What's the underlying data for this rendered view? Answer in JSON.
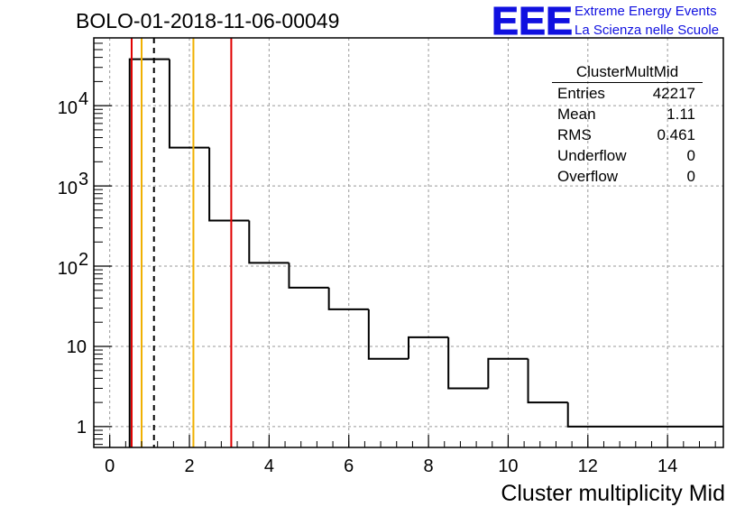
{
  "title": "BOLO-01-2018-11-06-00049",
  "logo": {
    "mark": "EEE",
    "line1": "Extreme Energy Events",
    "line2": "La Scienza nelle Scuole",
    "color": "#1010e0"
  },
  "stats_box": {
    "name": "ClusterMultMid",
    "rows": [
      {
        "label": "Entries",
        "value": "42217"
      },
      {
        "label": "Mean",
        "value": "1.11"
      },
      {
        "label": "RMS",
        "value": "0.461"
      },
      {
        "label": "Underflow",
        "value": "0"
      },
      {
        "label": "Overflow",
        "value": "0"
      }
    ]
  },
  "chart_data": {
    "type": "histogram",
    "xlabel": "Cluster multiplicity Mid",
    "ylabel": "",
    "xlim": [
      -0.4,
      15.4
    ],
    "ylim": [
      0.55,
      70000
    ],
    "y_scale": "log",
    "grid": true,
    "x_ticks": [
      0,
      2,
      4,
      6,
      8,
      10,
      12,
      14
    ],
    "y_ticks": [
      {
        "value": 1,
        "label": "1"
      },
      {
        "value": 10,
        "label": "10"
      },
      {
        "value": 100,
        "base": "10",
        "exp": "2"
      },
      {
        "value": 1000,
        "base": "10",
        "exp": "3"
      },
      {
        "value": 10000,
        "base": "10",
        "exp": "4"
      }
    ],
    "bins": [
      {
        "x0": 0.5,
        "x1": 1.5,
        "count": 38000
      },
      {
        "x0": 1.5,
        "x1": 2.5,
        "count": 3000
      },
      {
        "x0": 2.5,
        "x1": 3.5,
        "count": 370
      },
      {
        "x0": 3.5,
        "x1": 4.5,
        "count": 110
      },
      {
        "x0": 4.5,
        "x1": 5.5,
        "count": 54
      },
      {
        "x0": 5.5,
        "x1": 6.5,
        "count": 29
      },
      {
        "x0": 6.5,
        "x1": 7.5,
        "count": 7
      },
      {
        "x0": 7.5,
        "x1": 8.5,
        "count": 13
      },
      {
        "x0": 8.5,
        "x1": 9.5,
        "count": 3
      },
      {
        "x0": 9.5,
        "x1": 10.5,
        "count": 7
      },
      {
        "x0": 10.5,
        "x1": 11.5,
        "count": 2
      },
      {
        "x0": 11.5,
        "x1": 15.4,
        "count": 1
      }
    ],
    "vertical_lines": [
      {
        "x": 0.55,
        "color": "#e00000",
        "style": "solid"
      },
      {
        "x": 0.8,
        "color": "#f0b000",
        "style": "solid"
      },
      {
        "x": 1.11,
        "color": "#000000",
        "style": "dashed"
      },
      {
        "x": 2.1,
        "color": "#f0b000",
        "style": "solid"
      },
      {
        "x": 3.05,
        "color": "#e00000",
        "style": "solid"
      }
    ]
  }
}
